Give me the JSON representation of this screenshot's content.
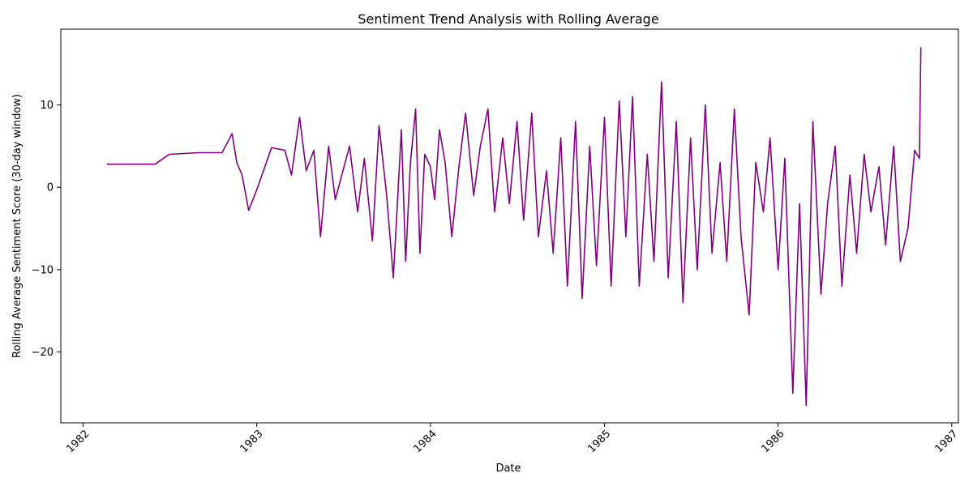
{
  "chart_data": {
    "type": "line",
    "title": "Sentiment Trend Analysis with Rolling Average",
    "xlabel": "Date",
    "ylabel": "Rolling Average Sentiment Score (30-day window)",
    "xlim": [
      "1981-11-15",
      "1987-01-15"
    ],
    "ylim": [
      -28.6,
      19.2
    ],
    "x_ticks": [
      "1982",
      "1983",
      "1984",
      "1985",
      "1986",
      "1987"
    ],
    "y_ticks": [
      -20,
      -10,
      0,
      10
    ],
    "grid": false,
    "line_color": "#800080",
    "series": [
      {
        "x": [
          "1982-02-20",
          "1982-06-01",
          "1982-07-01",
          "1982-09-01",
          "1982-10-20",
          "1982-11-10",
          "1982-11-20",
          "1982-12-01",
          "1982-12-15",
          "1983-01-01",
          "1983-02-01",
          "1983-03-01",
          "1983-03-15",
          "1983-04-01",
          "1983-04-15",
          "1983-05-01",
          "1983-05-15",
          "1983-06-01",
          "1983-06-15",
          "1983-07-01",
          "1983-07-15",
          "1983-08-01",
          "1983-08-15",
          "1983-09-01",
          "1983-09-15",
          "1983-10-01",
          "1983-10-15",
          "1983-11-01",
          "1983-11-10",
          "1983-11-20",
          "1983-12-01",
          "1983-12-10",
          "1983-12-20",
          "1984-01-01",
          "1984-01-10",
          "1984-01-20",
          "1984-02-01",
          "1984-02-15",
          "1984-03-01",
          "1984-03-15",
          "1984-04-01",
          "1984-04-15",
          "1984-05-01",
          "1984-05-15",
          "1984-06-01",
          "1984-06-15",
          "1984-07-01",
          "1984-07-15",
          "1984-08-01",
          "1984-08-15",
          "1984-09-01",
          "1984-09-15",
          "1984-10-01",
          "1984-10-15",
          "1984-11-01",
          "1984-11-15",
          "1984-12-01",
          "1984-12-15",
          "1985-01-01",
          "1985-01-15",
          "1985-02-01",
          "1985-02-15",
          "1985-03-01",
          "1985-03-15",
          "1985-04-01",
          "1985-04-15",
          "1985-05-01",
          "1985-05-15",
          "1985-06-01",
          "1985-06-15",
          "1985-07-01",
          "1985-07-15",
          "1985-08-01",
          "1985-08-15",
          "1985-09-01",
          "1985-09-15",
          "1985-10-01",
          "1985-10-15",
          "1985-11-01",
          "1985-11-15",
          "1985-12-01",
          "1985-12-15",
          "1986-01-01",
          "1986-01-15",
          "1986-02-01",
          "1986-02-15",
          "1986-03-01",
          "1986-03-15",
          "1986-04-01",
          "1986-04-15",
          "1986-05-01",
          "1986-05-15",
          "1986-06-01",
          "1986-06-15",
          "1986-07-01",
          "1986-07-15",
          "1986-08-01",
          "1986-08-15",
          "1986-09-01",
          "1986-09-15",
          "1986-10-01",
          "1986-10-15",
          "1986-10-25",
          "1986-10-28"
        ],
        "y": [
          2.8,
          2.8,
          4.0,
          4.2,
          4.2,
          6.5,
          3.0,
          1.5,
          -2.8,
          -0.3,
          4.8,
          4.5,
          1.5,
          8.5,
          2.0,
          4.5,
          -6.0,
          5.0,
          -1.5,
          2.0,
          5.0,
          -3.0,
          3.5,
          -6.5,
          7.5,
          -1.0,
          -11.0,
          7.0,
          -9.0,
          3.0,
          9.5,
          -8.0,
          4.0,
          2.5,
          -1.5,
          7.0,
          3.0,
          -6.0,
          2.5,
          9.0,
          -1.0,
          5.0,
          9.5,
          -3.0,
          6.0,
          -2.0,
          8.0,
          -4.0,
          9.0,
          -6.0,
          2.0,
          -8.0,
          6.0,
          -12.0,
          8.0,
          -13.5,
          5.0,
          -9.5,
          8.5,
          -12.0,
          10.5,
          -6.0,
          11.0,
          -12.0,
          4.0,
          -9.0,
          12.8,
          -11.0,
          8.0,
          -14.0,
          6.0,
          -10.0,
          10.0,
          -8.0,
          3.0,
          -9.0,
          9.5,
          -6.0,
          -15.5,
          3.0,
          -3.0,
          6.0,
          -10.0,
          3.5,
          -25.0,
          -2.0,
          -26.5,
          8.0,
          -13.0,
          -2.0,
          5.0,
          -12.0,
          1.5,
          -8.0,
          4.0,
          -3.0,
          2.5,
          -7.0,
          5.0,
          -9.0,
          -5.0,
          4.5,
          3.5,
          17.0
        ]
      }
    ]
  }
}
